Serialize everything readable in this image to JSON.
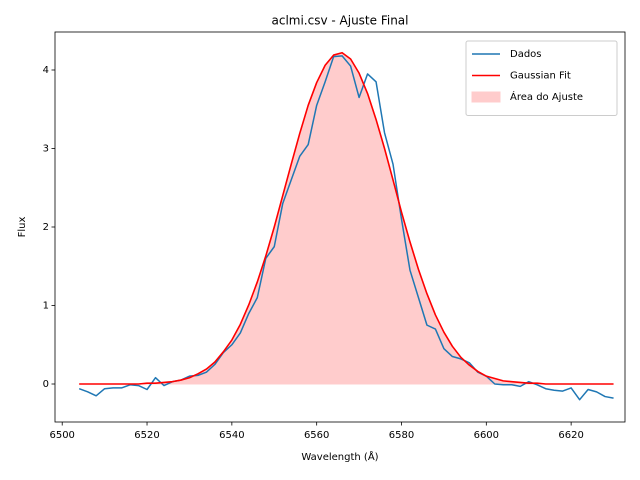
{
  "chart_data": {
    "type": "line",
    "title": "aclmi.csv - Ajuste Final",
    "xlabel": "Wavelength (Å)",
    "ylabel": "Flux",
    "x": [
      6504,
      6506,
      6508,
      6510,
      6512,
      6514,
      6516,
      6518,
      6520,
      6522,
      6524,
      6526,
      6528,
      6530,
      6532,
      6534,
      6536,
      6538,
      6540,
      6542,
      6544,
      6546,
      6548,
      6550,
      6552,
      6554,
      6556,
      6558,
      6560,
      6562,
      6564,
      6566,
      6568,
      6570,
      6572,
      6574,
      6576,
      6578,
      6580,
      6582,
      6584,
      6586,
      6588,
      6590,
      6592,
      6594,
      6596,
      6598,
      6600,
      6602,
      6604,
      6606,
      6608,
      6610,
      6612,
      6614,
      6616,
      6618,
      6620,
      6622,
      6624,
      6626,
      6628,
      6630
    ],
    "series": [
      {
        "name": "Dados",
        "color": "#1f77b4",
        "values": [
          -0.06,
          -0.1,
          -0.15,
          -0.06,
          -0.05,
          -0.05,
          -0.01,
          -0.02,
          -0.07,
          0.08,
          -0.02,
          0.03,
          0.05,
          0.1,
          0.11,
          0.15,
          0.25,
          0.4,
          0.5,
          0.65,
          0.9,
          1.1,
          1.6,
          1.75,
          2.3,
          2.6,
          2.9,
          3.05,
          3.55,
          3.85,
          4.17,
          4.18,
          4.05,
          3.65,
          3.95,
          3.85,
          3.2,
          2.8,
          2.1,
          1.45,
          1.1,
          0.75,
          0.7,
          0.45,
          0.35,
          0.32,
          0.27,
          0.15,
          0.1,
          0.0,
          -0.01,
          -0.01,
          -0.03,
          0.03,
          -0.01,
          -0.06,
          -0.08,
          -0.09,
          -0.05,
          -0.2,
          -0.07,
          -0.1,
          -0.16,
          -0.18
        ]
      },
      {
        "name": "Gaussian Fit",
        "color": "#ff0000",
        "values": [
          0,
          0,
          0,
          0,
          0,
          0,
          0,
          0,
          0.01,
          0.01,
          0.02,
          0.03,
          0.05,
          0.08,
          0.13,
          0.19,
          0.28,
          0.41,
          0.56,
          0.76,
          1.01,
          1.3,
          1.63,
          2.0,
          2.4,
          2.8,
          3.19,
          3.55,
          3.84,
          4.06,
          4.19,
          4.22,
          4.14,
          3.96,
          3.7,
          3.37,
          3.0,
          2.6,
          2.19,
          1.81,
          1.46,
          1.15,
          0.88,
          0.66,
          0.48,
          0.34,
          0.24,
          0.16,
          0.1,
          0.07,
          0.04,
          0.03,
          0.02,
          0.01,
          0.01,
          0,
          0,
          0,
          0,
          0,
          0,
          0,
          0,
          0
        ]
      }
    ],
    "area": {
      "name": "Área do Ajuste",
      "color": "#ffcccc",
      "of_series": 1
    },
    "xlim": [
      6498.3,
      6632.7
    ],
    "ylim": [
      -0.484,
      4.484
    ],
    "xticks": [
      6500,
      6520,
      6540,
      6560,
      6580,
      6600,
      6620
    ],
    "yticks": [
      0,
      1,
      2,
      3,
      4
    ],
    "legend": "upper right"
  }
}
